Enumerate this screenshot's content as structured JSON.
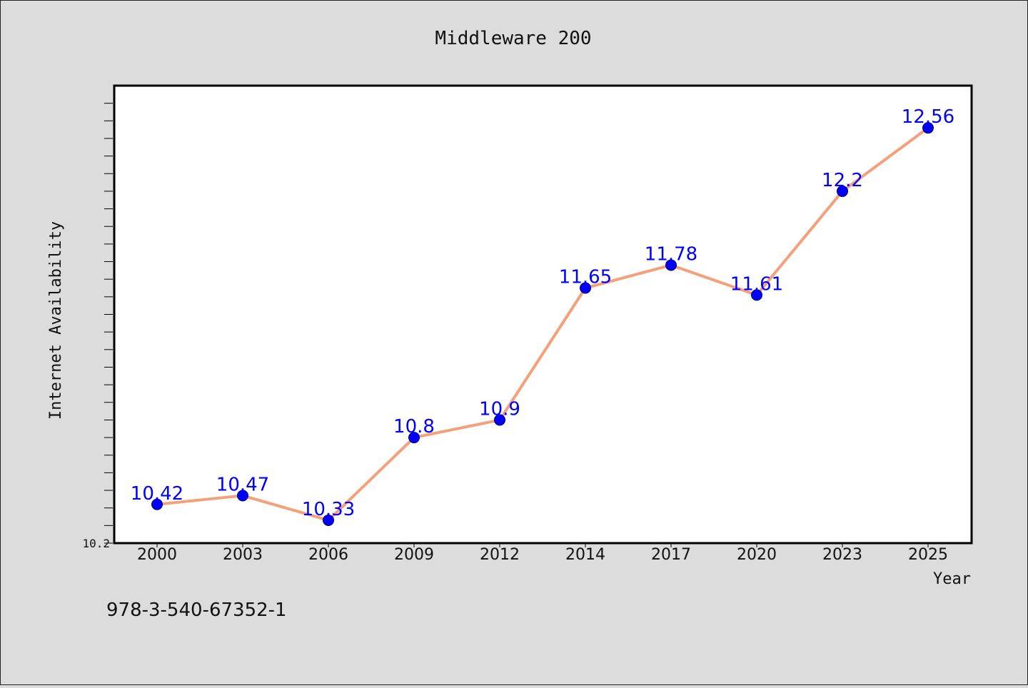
{
  "chart_data": {
    "type": "line",
    "title": "Middleware 200",
    "xlabel": "Year",
    "ylabel": "Internet Availability",
    "categories": [
      "2000",
      "2003",
      "2006",
      "2009",
      "2012",
      "2014",
      "2017",
      "2020",
      "2023",
      "2025"
    ],
    "series": [
      {
        "values": [
          10.42,
          10.47,
          10.33,
          10.8,
          10.9,
          11.65,
          11.78,
          11.61,
          12.2,
          12.56
        ],
        "labels": [
          "10.42",
          "10.47",
          "10.33",
          "10.8",
          "10.9",
          "11.65",
          "11.78",
          "11.61",
          "12.2",
          "12.56"
        ]
      }
    ],
    "ylim": [
      10.2,
      12.8
    ],
    "ytick_labels": [
      "10.2"
    ],
    "grid": false,
    "colors": {
      "line": "#f4a07a",
      "marker": "#0000ff",
      "data_label": "#0000ff",
      "background": "#dcdcdc",
      "plot_background": "#ffffff"
    }
  },
  "footnote": "978-3-540-67352-1"
}
